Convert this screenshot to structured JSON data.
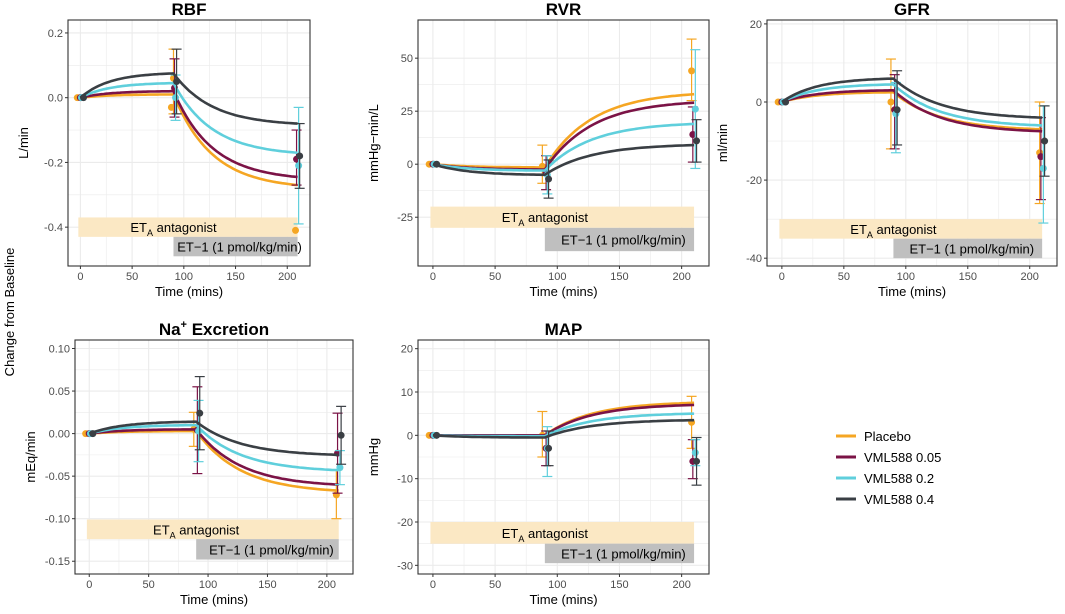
{
  "figure": {
    "shared_ylabel": "Change from Baseline",
    "antagonist_label": "ET",
    "antagonist_sub": "A",
    "antagonist_suffix": " antagonist",
    "et1_label": "ET−1 (1 pmol/kg/min)",
    "colors": {
      "Placebo": "#f5a623",
      "VML588 0.05": "#7b1346",
      "VML588 0.2": "#5fcfdc",
      "VML588 0.4": "#3a3f44",
      "band_antagonist": "#fbe8c4",
      "band_et1": "#bfbfbf",
      "grid": "#ebebeb"
    }
  },
  "legend": {
    "items": [
      "Placebo",
      "VML588 0.05",
      "VML588 0.2",
      "VML588 0.4"
    ]
  },
  "chart_data": [
    {
      "id": "rbf",
      "type": "line",
      "title": "RBF",
      "title_sup": "",
      "xlabel": "Time (mins)",
      "ylabel": "L/min",
      "xlim": [
        -12,
        222
      ],
      "ylim": [
        -0.52,
        0.24
      ],
      "xticks": [
        0,
        50,
        100,
        150,
        200
      ],
      "yticks": [
        -0.4,
        -0.2,
        0.0,
        0.2
      ],
      "ytick_labels": [
        "-0.4",
        "-0.2",
        "0.0",
        "0.2"
      ],
      "bands": {
        "antagonist": [
          -0.43,
          -0.37
        ],
        "et1": [
          -0.49,
          -0.43
        ]
      },
      "series": [
        {
          "name": "Placebo",
          "curve": [
            [
              0,
              0
            ],
            [
              90,
              0.01
            ],
            [
              210,
              -0.27
            ]
          ],
          "points": [
            [
              -3,
              0,
              0,
              0
            ],
            [
              88,
              -0.03,
              -0.03,
              -0.03
            ],
            [
              90,
              0.06,
              -0.05,
              0.15
            ],
            [
              208,
              -0.41,
              -0.41,
              -0.41
            ]
          ]
        },
        {
          "name": "VML588 0.05",
          "curve": [
            [
              0,
              0
            ],
            [
              90,
              0.02
            ],
            [
              210,
              -0.245
            ]
          ],
          "points": [
            [
              0,
              0,
              0,
              0
            ],
            [
              91,
              0.03,
              -0.06,
              0.12
            ],
            [
              209,
              -0.19,
              -0.27,
              -0.1
            ]
          ]
        },
        {
          "name": "VML588 0.2",
          "curve": [
            [
              0,
              0
            ],
            [
              90,
              0.045
            ],
            [
              210,
              -0.17
            ]
          ],
          "points": [
            [
              1,
              0,
              0,
              0
            ],
            [
              92,
              0.0,
              -0.07,
              0.07
            ],
            [
              211,
              -0.21,
              -0.39,
              -0.03
            ]
          ]
        },
        {
          "name": "VML588 0.4",
          "curve": [
            [
              0,
              0
            ],
            [
              90,
              0.075
            ],
            [
              210,
              -0.08
            ]
          ],
          "points": [
            [
              3,
              0,
              0,
              0
            ],
            [
              93,
              0.05,
              -0.05,
              0.15
            ],
            [
              212,
              -0.18,
              -0.28,
              -0.08
            ]
          ]
        }
      ]
    },
    {
      "id": "rvr",
      "type": "line",
      "title": "RVR",
      "title_sup": "",
      "xlabel": "Time (mins)",
      "ylabel": "mmHg−min/L",
      "xlim": [
        -12,
        222
      ],
      "ylim": [
        -48,
        68
      ],
      "xticks": [
        0,
        50,
        100,
        150,
        200
      ],
      "yticks": [
        -25,
        0,
        25,
        50
      ],
      "ytick_labels": [
        "-25",
        "0",
        "25",
        "50"
      ],
      "bands": {
        "antagonist": [
          -30,
          -20
        ],
        "et1": [
          -41,
          -30
        ]
      },
      "series": [
        {
          "name": "Placebo",
          "curve": [
            [
              0,
              0
            ],
            [
              90,
              -1.5
            ],
            [
              210,
              33
            ]
          ],
          "points": [
            [
              -3,
              0,
              0,
              0
            ],
            [
              88,
              -1,
              -9,
              9
            ],
            [
              208,
              44,
              30,
              59
            ]
          ]
        },
        {
          "name": "VML588 0.05",
          "curve": [
            [
              0,
              0
            ],
            [
              90,
              -2.5
            ],
            [
              210,
              29
            ]
          ],
          "points": [
            [
              0,
              0,
              0,
              0
            ],
            [
              91,
              -4,
              -12,
              4
            ],
            [
              209,
              14,
              1,
              27
            ]
          ]
        },
        {
          "name": "VML588 0.2",
          "curve": [
            [
              0,
              0
            ],
            [
              90,
              -3
            ],
            [
              210,
              19
            ]
          ],
          "points": [
            [
              1,
              0,
              0,
              0
            ],
            [
              92,
              -5,
              -14,
              4
            ],
            [
              211,
              26,
              -2,
              54
            ]
          ]
        },
        {
          "name": "VML588 0.4",
          "curve": [
            [
              0,
              0
            ],
            [
              90,
              -5
            ],
            [
              210,
              9
            ]
          ],
          "points": [
            [
              3,
              0,
              0,
              0
            ],
            [
              93,
              -7,
              -16,
              2
            ],
            [
              212,
              11,
              1,
              21
            ]
          ]
        }
      ]
    },
    {
      "id": "gfr",
      "type": "line",
      "title": "GFR",
      "title_sup": "",
      "xlabel": "Time (mins)",
      "ylabel": "ml/min",
      "xlim": [
        -12,
        222
      ],
      "ylim": [
        -42,
        21
      ],
      "xticks": [
        0,
        50,
        100,
        150,
        200
      ],
      "yticks": [
        -40,
        -20,
        0,
        20
      ],
      "ytick_labels": [
        "-40",
        "-20",
        "0",
        "20"
      ],
      "bands": {
        "antagonist": [
          -35,
          -30
        ],
        "et1": [
          -40,
          -35
        ]
      },
      "series": [
        {
          "name": "Placebo",
          "curve": [
            [
              0,
              0
            ],
            [
              90,
              2.5
            ],
            [
              210,
              -7
            ]
          ],
          "points": [
            [
              -3,
              0,
              0,
              0
            ],
            [
              88,
              0,
              -12,
              11
            ],
            [
              208,
              -13,
              -26,
              0
            ]
          ]
        },
        {
          "name": "VML588 0.05",
          "curve": [
            [
              0,
              0
            ],
            [
              90,
              3
            ],
            [
              210,
              -7.5
            ]
          ],
          "points": [
            [
              0,
              0,
              0,
              0
            ],
            [
              91,
              -2,
              -12,
              7
            ],
            [
              209,
              -14,
              -25,
              -4
            ]
          ]
        },
        {
          "name": "VML588 0.2",
          "curve": [
            [
              0,
              0
            ],
            [
              90,
              4.5
            ],
            [
              210,
              -6
            ]
          ],
          "points": [
            [
              1,
              0,
              0,
              0
            ],
            [
              92,
              -3,
              -13,
              5
            ],
            [
              211,
              -17,
              -31,
              -1
            ]
          ]
        },
        {
          "name": "VML588 0.4",
          "curve": [
            [
              0,
              0
            ],
            [
              90,
              6
            ],
            [
              210,
              -4
            ]
          ],
          "points": [
            [
              3,
              0,
              0,
              0
            ],
            [
              93,
              -2,
              -11,
              8
            ],
            [
              212,
              -10,
              -19,
              -1
            ]
          ]
        }
      ]
    },
    {
      "id": "na",
      "type": "line",
      "title": "Na",
      "title_sup": "+",
      "title_suffix": " Excretion",
      "xlabel": "Time (mins)",
      "ylabel": "mEq/min",
      "xlim": [
        -12,
        222
      ],
      "ylim": [
        -0.165,
        0.11
      ],
      "xticks": [
        0,
        50,
        100,
        150,
        200
      ],
      "yticks": [
        -0.15,
        -0.1,
        -0.05,
        0.0,
        0.05,
        0.1
      ],
      "ytick_labels": [
        "-0.15",
        "-0.10",
        "-0.05",
        "0.00",
        "0.05",
        "0.10"
      ],
      "bands": {
        "antagonist": [
          -0.124,
          -0.101
        ],
        "et1": [
          -0.148,
          -0.124
        ]
      },
      "series": [
        {
          "name": "Placebo",
          "curve": [
            [
              0,
              0
            ],
            [
              90,
              0.003
            ],
            [
              210,
              -0.067
            ]
          ],
          "points": [
            [
              -3,
              0,
              0,
              0
            ],
            [
              88,
              0.005,
              -0.015,
              0.025
            ],
            [
              208,
              -0.072,
              -0.1,
              -0.043
            ]
          ]
        },
        {
          "name": "VML588 0.05",
          "curve": [
            [
              0,
              0
            ],
            [
              90,
              0.005
            ],
            [
              210,
              -0.06
            ]
          ],
          "points": [
            [
              0,
              0,
              0,
              0
            ],
            [
              91,
              0.004,
              -0.047,
              0.055
            ],
            [
              209,
              -0.023,
              -0.07,
              0.024
            ]
          ]
        },
        {
          "name": "VML588 0.2",
          "curve": [
            [
              0,
              0
            ],
            [
              90,
              0.01
            ],
            [
              210,
              -0.043
            ]
          ],
          "points": [
            [
              1,
              0,
              0,
              0
            ],
            [
              92,
              0.003,
              -0.033,
              0.039
            ],
            [
              211,
              -0.04,
              -0.06,
              -0.02
            ]
          ]
        },
        {
          "name": "VML588 0.4",
          "curve": [
            [
              0,
              0
            ],
            [
              90,
              0.014
            ],
            [
              210,
              -0.025
            ]
          ],
          "points": [
            [
              3,
              0,
              0,
              0
            ],
            [
              93,
              0.024,
              -0.019,
              0.067
            ],
            [
              212,
              -0.002,
              -0.036,
              0.032
            ]
          ]
        }
      ]
    },
    {
      "id": "map",
      "type": "line",
      "title": "MAP",
      "title_sup": "",
      "xlabel": "Time (mins)",
      "ylabel": "mmHg",
      "xlim": [
        -12,
        222
      ],
      "ylim": [
        -32,
        22
      ],
      "xticks": [
        0,
        50,
        100,
        150,
        200
      ],
      "yticks": [
        -30,
        -20,
        -10,
        0,
        10,
        20
      ],
      "ytick_labels": [
        "-30",
        "-20",
        "-10",
        "0",
        "10",
        "20"
      ],
      "bands": {
        "antagonist": [
          -25,
          -20
        ],
        "et1": [
          -29.5,
          -25
        ]
      },
      "series": [
        {
          "name": "Placebo",
          "curve": [
            [
              0,
              0
            ],
            [
              90,
              0
            ],
            [
              210,
              7.5
            ]
          ],
          "points": [
            [
              -3,
              0,
              0,
              0
            ],
            [
              88,
              0,
              -5,
              5.5
            ],
            [
              208,
              3,
              -3,
              9
            ]
          ]
        },
        {
          "name": "VML588 0.05",
          "curve": [
            [
              0,
              0
            ],
            [
              90,
              0
            ],
            [
              210,
              7
            ]
          ],
          "points": [
            [
              0,
              0,
              0,
              0
            ],
            [
              91,
              -3,
              -7,
              1
            ],
            [
              209,
              -6,
              -10,
              -1
            ]
          ]
        },
        {
          "name": "VML588 0.2",
          "curve": [
            [
              0,
              0
            ],
            [
              90,
              -0.2
            ],
            [
              210,
              5
            ]
          ],
          "points": [
            [
              1,
              0,
              0,
              0
            ],
            [
              92,
              -3,
              -9.5,
              2
            ],
            [
              211,
              -4,
              -7,
              -1
            ]
          ]
        },
        {
          "name": "VML588 0.4",
          "curve": [
            [
              0,
              0
            ],
            [
              90,
              -0.5
            ],
            [
              210,
              3.5
            ]
          ],
          "points": [
            [
              3,
              0,
              0,
              0
            ],
            [
              93,
              -3,
              -7,
              1
            ],
            [
              212,
              -6,
              -11.5,
              -0.5
            ]
          ]
        }
      ]
    }
  ]
}
